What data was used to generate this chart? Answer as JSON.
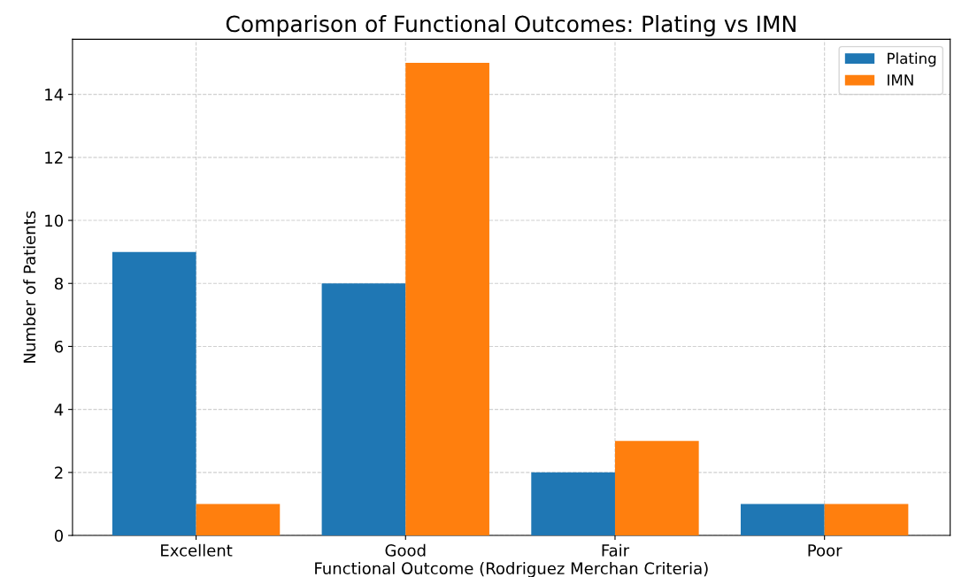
{
  "chart_data": {
    "type": "bar",
    "title": "Comparison of Functional Outcomes: Plating vs IMN",
    "xlabel": "Functional Outcome (Rodriguez Merchan Criteria)",
    "ylabel": "Number of Patients",
    "categories": [
      "Excellent",
      "Good",
      "Fair",
      "Poor"
    ],
    "series": [
      {
        "name": "Plating",
        "color": "#1f77b4",
        "values": [
          9,
          8,
          2,
          1
        ]
      },
      {
        "name": "IMN",
        "color": "#ff7f0e",
        "values": [
          1,
          15,
          3,
          1
        ]
      }
    ],
    "ylim": [
      0,
      15.75
    ],
    "yticks": [
      0,
      2,
      4,
      6,
      8,
      10,
      12,
      14
    ],
    "grid": true,
    "legend": "top right"
  }
}
